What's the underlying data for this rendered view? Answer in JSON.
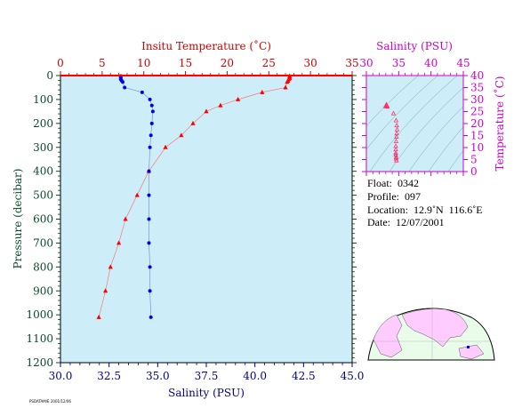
{
  "chart_data": [
    {
      "type": "line",
      "title": "",
      "x_top_label": "Insitu Temperature (˚C)",
      "x_top_ticks": [
        0,
        5,
        10,
        15,
        20,
        25,
        30,
        35
      ],
      "x_top_range": [
        0,
        35
      ],
      "x_bottom_label": "Salinity (PSU)",
      "x_bottom_ticks": [
        "30.0",
        "32.5",
        "35.0",
        "37.5",
        "40.0",
        "42.5",
        "45.0"
      ],
      "x_bottom_range": [
        30,
        45
      ],
      "ylabel": "Pressure (decibar)",
      "y_ticks": [
        0,
        100,
        200,
        300,
        400,
        500,
        600,
        700,
        800,
        900,
        1000,
        1100,
        1200
      ],
      "y_range": [
        1200,
        0
      ],
      "grid": false,
      "colors": {
        "temperature": "#ff0000",
        "salinity": "#0000ee",
        "background": "#cdeef8"
      },
      "series": [
        {
          "axis": "top",
          "marker": "triangle",
          "points": [
            [
              27.5,
              2
            ],
            [
              27.5,
              6
            ],
            [
              27.5,
              11
            ],
            [
              27.4,
              16
            ],
            [
              27.3,
              22
            ],
            [
              27.2,
              27
            ],
            [
              27.0,
              50
            ],
            [
              24.2,
              70
            ],
            [
              21.3,
              100
            ],
            [
              19.2,
              125
            ],
            [
              17.5,
              150
            ],
            [
              15.9,
              200
            ],
            [
              14.5,
              250
            ],
            [
              12.6,
              300
            ],
            [
              10.6,
              400
            ],
            [
              9.2,
              500
            ],
            [
              7.8,
              600
            ],
            [
              7.0,
              700
            ],
            [
              6.0,
              800
            ],
            [
              5.4,
              900
            ],
            [
              4.6,
              1010
            ]
          ]
        },
        {
          "axis": "bottom",
          "marker": "dot",
          "points": [
            [
              33.1,
              2
            ],
            [
              33.1,
              6
            ],
            [
              33.1,
              11
            ],
            [
              33.1,
              16
            ],
            [
              33.15,
              22
            ],
            [
              33.2,
              27
            ],
            [
              33.3,
              50
            ],
            [
              34.2,
              70
            ],
            [
              34.6,
              100
            ],
            [
              34.7,
              125
            ],
            [
              34.75,
              150
            ],
            [
              34.7,
              200
            ],
            [
              34.65,
              250
            ],
            [
              34.6,
              300
            ],
            [
              34.55,
              400
            ],
            [
              34.55,
              500
            ],
            [
              34.55,
              600
            ],
            [
              34.55,
              700
            ],
            [
              34.6,
              800
            ],
            [
              34.6,
              900
            ],
            [
              34.65,
              1010
            ]
          ]
        }
      ]
    },
    {
      "type": "scatter",
      "title": "",
      "xlabel": "Salinity (PSU)",
      "x_ticks": [
        30,
        35,
        40,
        45
      ],
      "x_range": [
        30,
        45
      ],
      "ylabel": "Temperature (˚C)",
      "y_ticks": [
        0,
        5,
        10,
        15,
        20,
        25,
        30,
        35,
        40
      ],
      "y_range": [
        0,
        40
      ],
      "grid": false,
      "colors": {
        "axes": "#cc00cc",
        "points": "#ff3366"
      },
      "points": [
        [
          33.1,
          27.5
        ],
        [
          33.2,
          27.0
        ],
        [
          34.2,
          24.2
        ],
        [
          34.6,
          21.3
        ],
        [
          34.7,
          19.2
        ],
        [
          34.75,
          17.5
        ],
        [
          34.7,
          15.9
        ],
        [
          34.65,
          14.5
        ],
        [
          34.6,
          12.6
        ],
        [
          34.55,
          10.6
        ],
        [
          34.55,
          9.2
        ],
        [
          34.55,
          7.8
        ],
        [
          34.55,
          7.0
        ],
        [
          34.6,
          6.0
        ],
        [
          34.6,
          5.4
        ],
        [
          34.65,
          4.6
        ]
      ]
    }
  ],
  "info": {
    "float": "Float:  0342",
    "profile": "Profile:  097",
    "location": "Location:  12.9˚N  116.6˚E",
    "date": "Date:  12/07/2001"
  },
  "footnote": "PSDATAM/E 2001/12/06",
  "map": {
    "land_color": "#ffccff",
    "ocean_color": "#e9fbe9",
    "marker_color": "#0000ff"
  }
}
